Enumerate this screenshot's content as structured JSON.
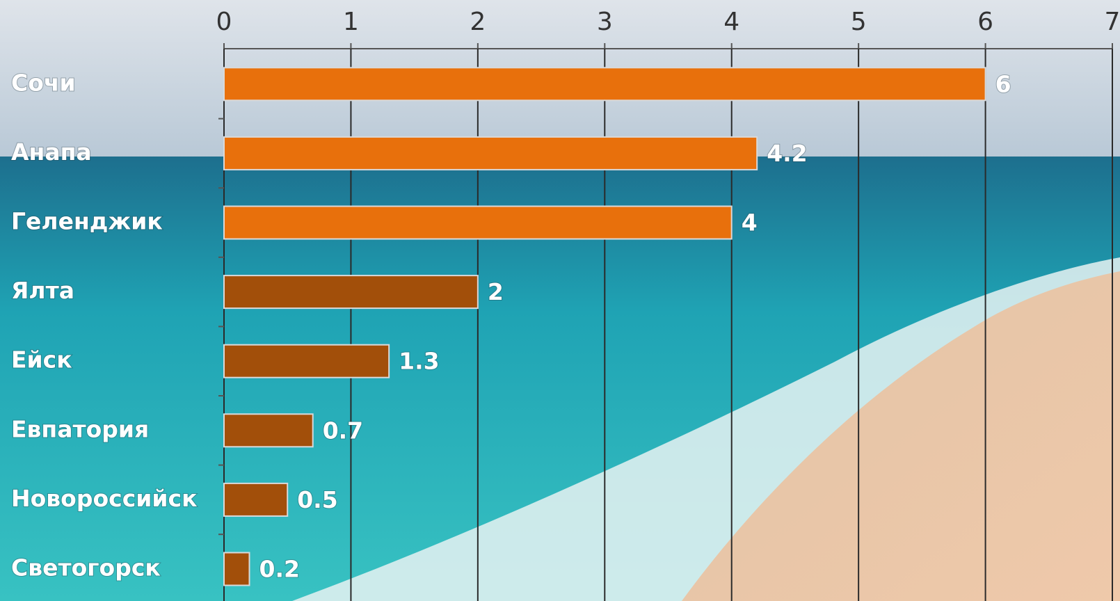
{
  "chart_data": {
    "type": "bar",
    "orientation": "horizontal",
    "categories": [
      "Сочи",
      "Анапа",
      "Геленджик",
      "Ялта",
      "Ейск",
      "Евпатория",
      "Новороссийск",
      "Светогорск"
    ],
    "values": [
      6,
      4.2,
      4,
      2,
      1.3,
      0.7,
      0.5,
      0.2
    ],
    "colors": [
      "#e8700c",
      "#e8700c",
      "#e8700c",
      "#a24f0a",
      "#a24f0a",
      "#a24f0a",
      "#a24f0a",
      "#a24f0a"
    ],
    "xlim": [
      0,
      7
    ],
    "xticks": [
      0,
      1,
      2,
      3,
      4,
      5,
      6,
      7
    ],
    "grid": true
  }
}
